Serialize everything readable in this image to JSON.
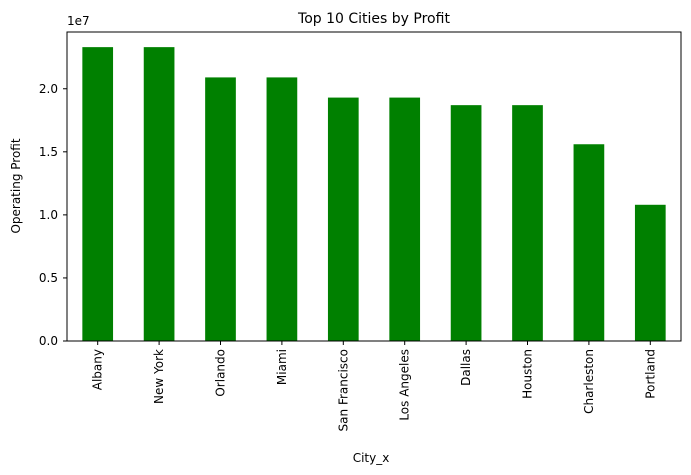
{
  "chart_data": {
    "type": "bar",
    "title": "Top 10 Cities by Profit",
    "xlabel": "City_x",
    "ylabel": "Operating Profit",
    "y_offset_label": "1e7",
    "categories": [
      "Albany",
      "New York",
      "Orlando",
      "Miami",
      "San Francisco",
      "Los Angeles",
      "Dallas",
      "Houston",
      "Charleston",
      "Portland"
    ],
    "values": [
      2.33,
      2.33,
      2.09,
      2.09,
      1.93,
      1.93,
      1.87,
      1.87,
      1.56,
      1.08
    ],
    "color": "#008000",
    "ylim": [
      0,
      2.45
    ],
    "yticks": [
      {
        "value": 0,
        "label": "0.0"
      },
      {
        "value": 0.5,
        "label": "0.5"
      },
      {
        "value": 1,
        "label": "1.0"
      },
      {
        "value": 1.5,
        "label": "1.5"
      },
      {
        "value": 2,
        "label": "2.0"
      }
    ],
    "grid": false
  }
}
